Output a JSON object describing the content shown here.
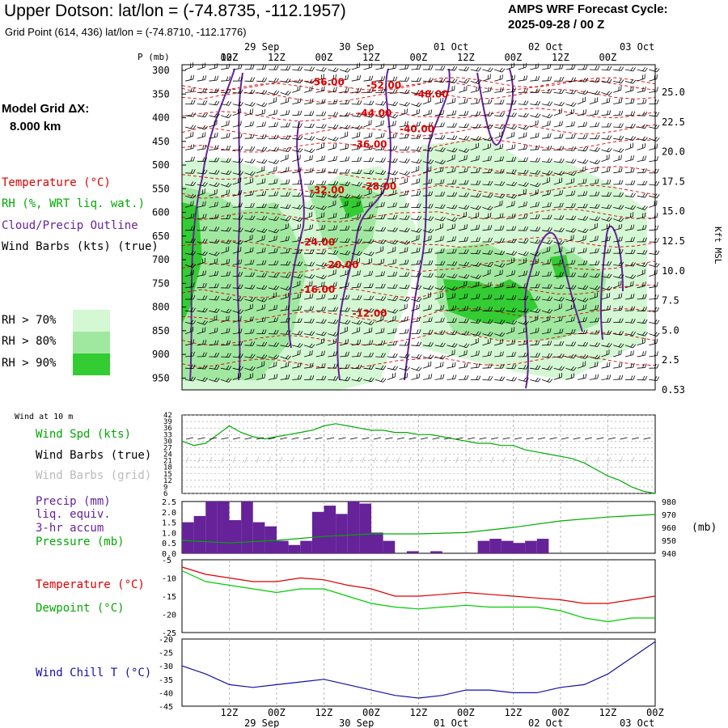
{
  "header": {
    "title": "Upper Dotson:  lat/lon = (-74.8735, -112.1957)",
    "subtitle": "Grid Point (614, 436) lat/lon = (-74.8710, -112.1776)",
    "cycle_line1": "AMPS WRF Forecast Cycle:",
    "cycle_line2": "2025-09-28 / 00  Z",
    "grid_label": "Model Grid ΔX:",
    "grid_value": "8.000 km"
  },
  "colors": {
    "temperature": "#dd0000",
    "rh_text": "#00aa00",
    "cloud": "#662299",
    "rh70": "#d4f7d4",
    "rh80": "#a0e8a0",
    "rh90": "#33cc33",
    "precip": "#662299",
    "pressure": "#00aa00",
    "dewpoint": "#00cc00",
    "windchill": "#1111aa",
    "gray_barbs": "#bbbbbb"
  },
  "time_axis": {
    "top_dates": [
      "29 Sep",
      "30 Sep",
      "01 Oct",
      "02 Oct",
      "03 Oct"
    ],
    "hour_labels": [
      "12Z",
      "00Z",
      "12Z",
      "00Z",
      "12Z",
      "00Z",
      "12Z",
      "00Z",
      "12Z",
      "00Z"
    ]
  },
  "sounding": {
    "p_label": "P (mb)",
    "right_axis_label": "Kft MSL",
    "pressure_ticks": [
      "300",
      "350",
      "400",
      "450",
      "500",
      "550",
      "600",
      "650",
      "700",
      "750",
      "800",
      "850",
      "900",
      "950"
    ],
    "height_ticks": [
      "25.0",
      "22.5",
      "20.0",
      "17.5",
      "15.0",
      "12.5",
      "10.0",
      "7.5",
      "5.0",
      "2.5",
      "0.53"
    ],
    "legend": {
      "temperature": "Temperature (°C)",
      "rh": "RH (%, WRT liq. wat.)",
      "cloud": "Cloud/Precip Outline",
      "wind": "Wind Barbs (kts) (true)",
      "rh70": "RH > 70%",
      "rh80": "RH > 80%",
      "rh90": "RH > 90%"
    },
    "temp_labels": [
      {
        "t": "-56.00",
        "x": 0.27,
        "p": 332
      },
      {
        "t": "-52.00",
        "x": 0.39,
        "p": 338
      },
      {
        "t": "-48.00",
        "x": 0.49,
        "p": 357
      },
      {
        "t": "-44.00",
        "x": 0.37,
        "p": 397
      },
      {
        "t": "-40.00",
        "x": 0.46,
        "p": 431
      },
      {
        "t": "-36.00",
        "x": 0.36,
        "p": 463
      },
      {
        "t": "-32.00",
        "x": 0.27,
        "p": 560
      },
      {
        "t": "-28.00",
        "x": 0.38,
        "p": 552
      },
      {
        "t": "-24.00",
        "x": 0.25,
        "p": 670
      },
      {
        "t": "-20.00",
        "x": 0.3,
        "p": 718
      },
      {
        "t": "-16.00",
        "x": 0.25,
        "p": 770
      },
      {
        "t": "-12.00",
        "x": 0.36,
        "p": 820
      }
    ]
  },
  "wind_panel": {
    "title": "Wind at 10 m",
    "legend_speed": "Wind Spd (kts)",
    "legend_true": "Wind Barbs (true)",
    "legend_grid": "Wind Barbs (grid)",
    "y_ticks": [
      "42",
      "39",
      "36",
      "33",
      "30",
      "27",
      "24",
      "21",
      "18",
      "15",
      "12",
      "9",
      "6"
    ]
  },
  "precip_panel": {
    "legend_precip": "Precip (mm)",
    "legend_liq": "liq. equiv.",
    "legend_accum": "3-hr accum",
    "legend_pressure": "Pressure (mb)",
    "y_ticks_left": [
      "2.5",
      "2.0",
      "1.5",
      "1.0",
      "0.5",
      "0.0"
    ],
    "y_ticks_right": [
      "980",
      "970",
      "960",
      "950",
      "940"
    ],
    "right_unit": "(mb)"
  },
  "temp_panel": {
    "legend_temp": "Temperature (°C)",
    "legend_dew": "Dewpoint (°C)",
    "y_ticks": [
      "-5",
      "-10",
      "-15",
      "-20",
      "-25"
    ]
  },
  "chill_panel": {
    "legend": "Wind Chill T (°C)",
    "y_ticks": [
      "-20",
      "-25",
      "-30",
      "-35",
      "-40",
      "-45"
    ]
  },
  "chart_data": [
    {
      "type": "line",
      "panel": "sounding-cross-section",
      "x_hours": [
        0,
        120
      ],
      "ylim": [
        950,
        300
      ],
      "note_series": "temperature contour labels at pressure levels"
    },
    {
      "type": "line",
      "panel": "wind-speed-10m",
      "ylim": [
        6,
        42
      ],
      "series": [
        {
          "name": "Wind Spd (kts)",
          "x": [
            0,
            3,
            6,
            9,
            12,
            15,
            18,
            21,
            24,
            27,
            30,
            33,
            36,
            39,
            42,
            45,
            48,
            51,
            54,
            57,
            60,
            63,
            66,
            69,
            72,
            75,
            78,
            81,
            84,
            87,
            90,
            93,
            96,
            99,
            102,
            105,
            108,
            111,
            114,
            117,
            120
          ],
          "values": [
            30,
            28,
            29,
            33,
            37,
            34,
            32,
            31,
            32,
            33,
            34,
            35,
            37,
            38,
            37,
            36,
            35,
            35,
            34,
            34,
            33,
            33,
            32,
            31,
            30,
            29,
            29,
            28,
            28,
            26,
            25,
            24,
            23,
            22,
            20,
            17,
            14,
            12,
            9,
            7,
            6
          ]
        }
      ]
    },
    {
      "type": "bar",
      "panel": "precip-3hr",
      "ylim": [
        0,
        2.5
      ],
      "x": [
        1.5,
        4.5,
        7.5,
        10.5,
        13.5,
        16.5,
        19.5,
        22.5,
        25.5,
        28.5,
        31.5,
        34.5,
        37.5,
        40.5,
        43.5,
        46.5,
        49.5,
        52.5,
        55.5,
        58.5,
        61.5,
        64.5,
        67.5,
        70.5,
        73.5,
        76.5,
        79.5,
        82.5,
        85.5,
        88.5,
        91.5
      ],
      "series": [
        {
          "name": "Precip (mm)",
          "values": [
            1.5,
            1.8,
            2.5,
            2.5,
            1.6,
            2.5,
            1.5,
            1.3,
            0.6,
            0.4,
            0.6,
            2.0,
            2.3,
            1.9,
            2.5,
            2.4,
            1.0,
            0.6,
            0.0,
            0.1,
            0.0,
            0.1,
            0.0,
            0.0,
            0.0,
            0.6,
            0.7,
            0.6,
            0.5,
            0.6,
            0.7
          ]
        }
      ]
    },
    {
      "type": "line",
      "panel": "pressure",
      "ylim": [
        940,
        980
      ],
      "series": [
        {
          "name": "Pressure (mb)",
          "x": [
            0,
            12,
            24,
            36,
            48,
            60,
            72,
            84,
            96,
            108,
            120
          ],
          "values": [
            950,
            948,
            950,
            953,
            955,
            955,
            956,
            960,
            965,
            968,
            970
          ]
        }
      ]
    },
    {
      "type": "line",
      "panel": "temperature-dewpoint",
      "ylim": [
        -25,
        -5
      ],
      "series": [
        {
          "name": "Temperature (°C)",
          "x": [
            0,
            6,
            12,
            18,
            24,
            30,
            36,
            42,
            48,
            54,
            60,
            66,
            72,
            78,
            84,
            90,
            96,
            102,
            108,
            114,
            120
          ],
          "values": [
            -7,
            -9,
            -10,
            -11,
            -11,
            -10,
            -10.5,
            -12,
            -13,
            -15,
            -15,
            -14.5,
            -14,
            -14.5,
            -15,
            -15.5,
            -16,
            -17,
            -17,
            -16,
            -15
          ]
        },
        {
          "name": "Dewpoint (°C)",
          "x": [
            0,
            6,
            12,
            18,
            24,
            30,
            36,
            42,
            48,
            54,
            60,
            66,
            72,
            78,
            84,
            90,
            96,
            102,
            108,
            114,
            120
          ],
          "values": [
            -8,
            -11,
            -12,
            -13,
            -14,
            -13,
            -13,
            -15,
            -17,
            -18,
            -18.5,
            -18,
            -17.5,
            -18,
            -18,
            -18,
            -19,
            -21,
            -22,
            -21,
            -21
          ]
        }
      ]
    },
    {
      "type": "line",
      "panel": "wind-chill",
      "ylim": [
        -45,
        -20
      ],
      "series": [
        {
          "name": "Wind Chill T (°C)",
          "x": [
            0,
            6,
            12,
            18,
            24,
            30,
            36,
            42,
            48,
            54,
            60,
            66,
            72,
            78,
            84,
            90,
            96,
            102,
            108,
            114,
            120
          ],
          "values": [
            -30,
            -33,
            -37,
            -38,
            -37,
            -36,
            -35,
            -37,
            -39,
            -41,
            -42,
            -41,
            -39,
            -39,
            -40,
            -40,
            -38,
            -37,
            -33,
            -27,
            -21
          ]
        }
      ]
    }
  ]
}
